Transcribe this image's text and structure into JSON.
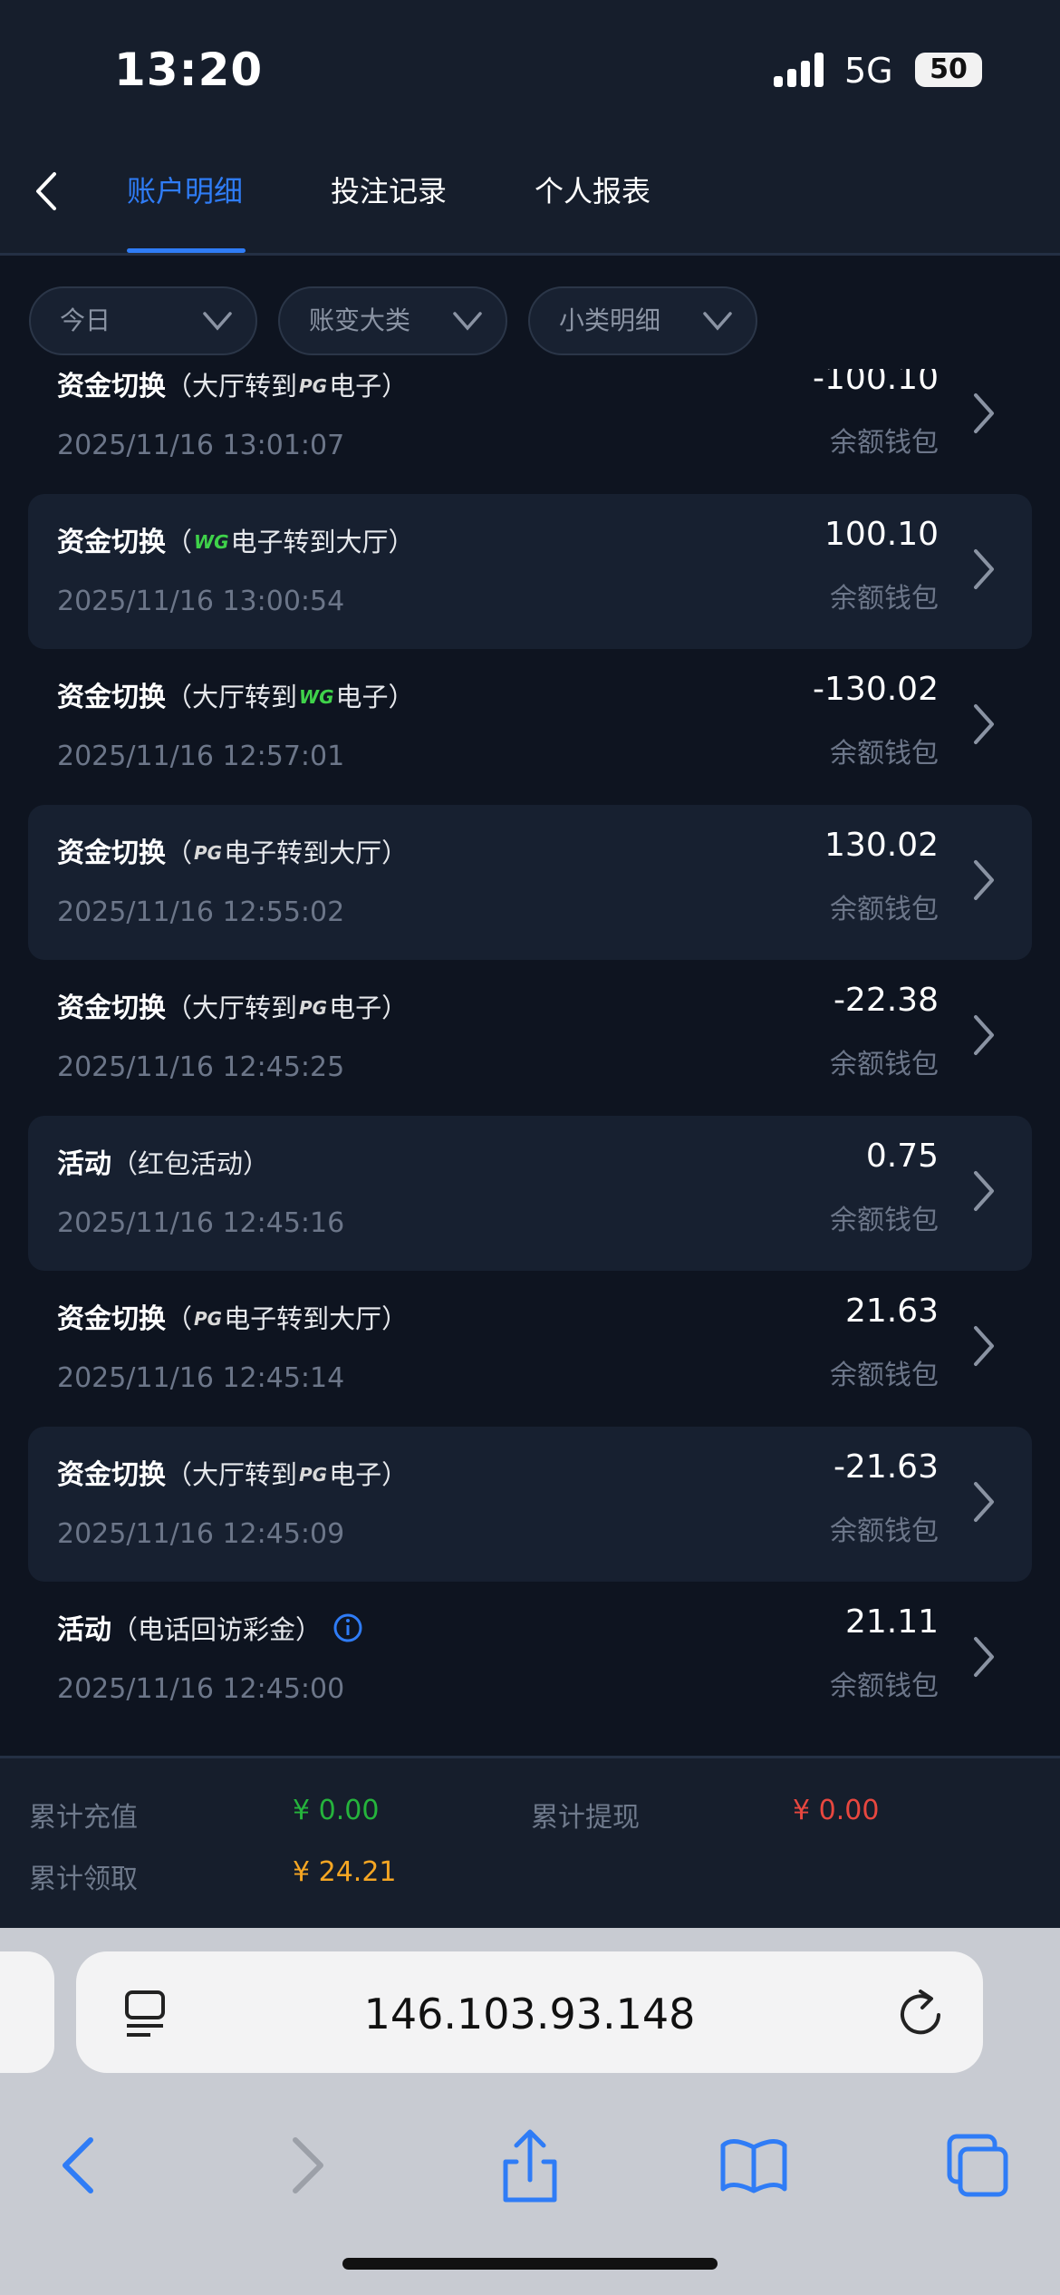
{
  "status_bar": {
    "time": "13:20",
    "network": "5G",
    "battery": "50"
  },
  "nav": {
    "tabs": [
      "账户明细",
      "投注记录",
      "个人报表"
    ]
  },
  "filters": [
    "今日",
    "账变大类",
    "小类明细"
  ],
  "records": [
    {
      "title": "资金切换",
      "detail_before": "（大厅转到",
      "logo": "PG",
      "logo_color": "#d9d9d9",
      "detail_after": "电子）",
      "time": "2025/11/16 13:01:07",
      "amount": "-100.10",
      "wallet": "余额钱包"
    },
    {
      "title": "资金切换",
      "detail_before": "（",
      "logo": "WG",
      "logo_color": "#3fd24a",
      "detail_after": "电子转到大厅）",
      "time": "2025/11/16 13:00:54",
      "amount": "100.10",
      "wallet": "余额钱包"
    },
    {
      "title": "资金切换",
      "detail_before": "（大厅转到",
      "logo": "WG",
      "logo_color": "#3fd24a",
      "detail_after": "电子）",
      "time": "2025/11/16 12:57:01",
      "amount": "-130.02",
      "wallet": "余额钱包"
    },
    {
      "title": "资金切换",
      "detail_before": "（",
      "logo": "PG",
      "logo_color": "#d9d9d9",
      "detail_after": "电子转到大厅）",
      "time": "2025/11/16 12:55:02",
      "amount": "130.02",
      "wallet": "余额钱包"
    },
    {
      "title": "资金切换",
      "detail_before": "（大厅转到",
      "logo": "PG",
      "logo_color": "#d9d9d9",
      "detail_after": "电子）",
      "time": "2025/11/16 12:45:25",
      "amount": "-22.38",
      "wallet": "余额钱包"
    },
    {
      "title": "活动",
      "detail_before": "（红包活动）",
      "time": "2025/11/16 12:45:16",
      "amount": "0.75",
      "wallet": "余额钱包"
    },
    {
      "title": "资金切换",
      "detail_before": "（",
      "logo": "PG",
      "logo_color": "#d9d9d9",
      "detail_after": "电子转到大厅）",
      "time": "2025/11/16 12:45:14",
      "amount": "21.63",
      "wallet": "余额钱包"
    },
    {
      "title": "资金切换",
      "detail_before": "（大厅转到",
      "logo": "PG",
      "logo_color": "#d9d9d9",
      "detail_after": "电子）",
      "time": "2025/11/16 12:45:09",
      "amount": "-21.63",
      "wallet": "余额钱包"
    },
    {
      "title": "活动",
      "detail_before": "（电话回访彩金）",
      "info_icon": true,
      "time": "2025/11/16 12:45:00",
      "amount": "21.11",
      "wallet": "余额钱包"
    }
  ],
  "summary": [
    {
      "label": "累计充值",
      "value": "¥ 0.00",
      "color": "#25b43c"
    },
    {
      "label": "累计提现",
      "value": "¥ 0.00",
      "color": "#e8473f"
    },
    {
      "label": "累计领取",
      "value": "¥ 24.21",
      "color": "#f5a623"
    }
  ],
  "browser": {
    "url": "146.103.93.148"
  }
}
